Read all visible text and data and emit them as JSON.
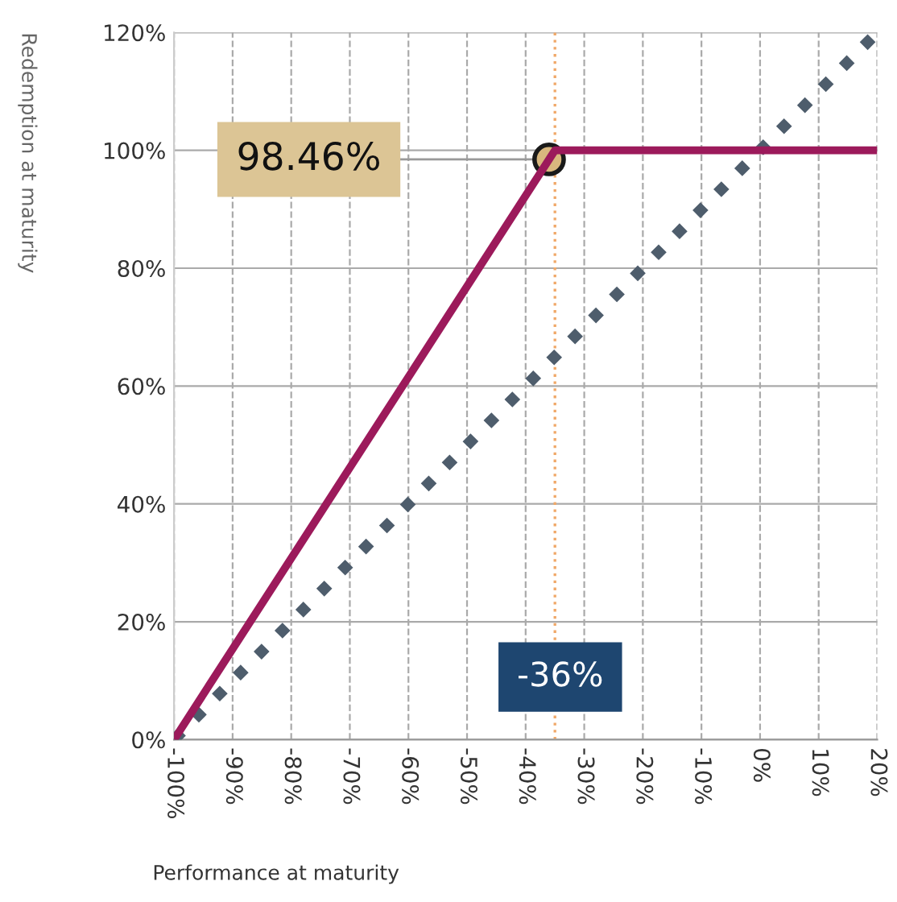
{
  "chart_data": {
    "type": "line",
    "xlabel": "Performance at maturity",
    "ylabel": "Redemption at maturity",
    "series": [
      {
        "x": [
          -100,
          -35,
          -35,
          20
        ],
        "values": [
          0,
          100,
          100,
          100
        ],
        "color": "#9c1a5b",
        "line_style": "solid"
      },
      {
        "x": [
          -100,
          20
        ],
        "values": [
          0,
          120
        ],
        "color": "#4e5d6c",
        "line_style": "dotted"
      },
      {
        "type": "scatter",
        "x": [
          -36
        ],
        "values": [
          98.46
        ],
        "color": "#d9b77e",
        "marker": "circle",
        "value_labels": [
          "98.46%"
        ]
      }
    ],
    "xlim": [
      -100,
      20
    ],
    "ylim": [
      0,
      120
    ],
    "xticks": [
      {
        "value": -100,
        "label": "-100%"
      },
      {
        "value": -90,
        "label": "-90%"
      },
      {
        "value": -80,
        "label": "-80%"
      },
      {
        "value": -70,
        "label": "-70%"
      },
      {
        "value": -60,
        "label": "-60%"
      },
      {
        "value": -50,
        "label": "-50%"
      },
      {
        "value": -40,
        "label": "-40%"
      },
      {
        "value": -30,
        "label": "-30%"
      },
      {
        "value": -20,
        "label": "-20%"
      },
      {
        "value": -10,
        "label": "-10%"
      },
      {
        "value": 0,
        "label": "0%"
      },
      {
        "value": 10,
        "label": "10%"
      },
      {
        "value": 20,
        "label": "20%"
      }
    ],
    "yticks": [
      {
        "value": 0,
        "label": "0%"
      },
      {
        "value": 20,
        "label": "20%"
      },
      {
        "value": 40,
        "label": "40%"
      },
      {
        "value": 60,
        "label": "60%"
      },
      {
        "value": 80,
        "label": "80%"
      },
      {
        "value": 100,
        "label": "100%"
      },
      {
        "value": 120,
        "label": "120%"
      }
    ],
    "grid": true,
    "ref_lines": [
      {
        "axis": "x",
        "value": -35,
        "color": "#f0a868",
        "line_style": "dotted"
      }
    ],
    "annotations": [
      {
        "text": "-36%",
        "x": -36,
        "y": 0
      }
    ]
  }
}
